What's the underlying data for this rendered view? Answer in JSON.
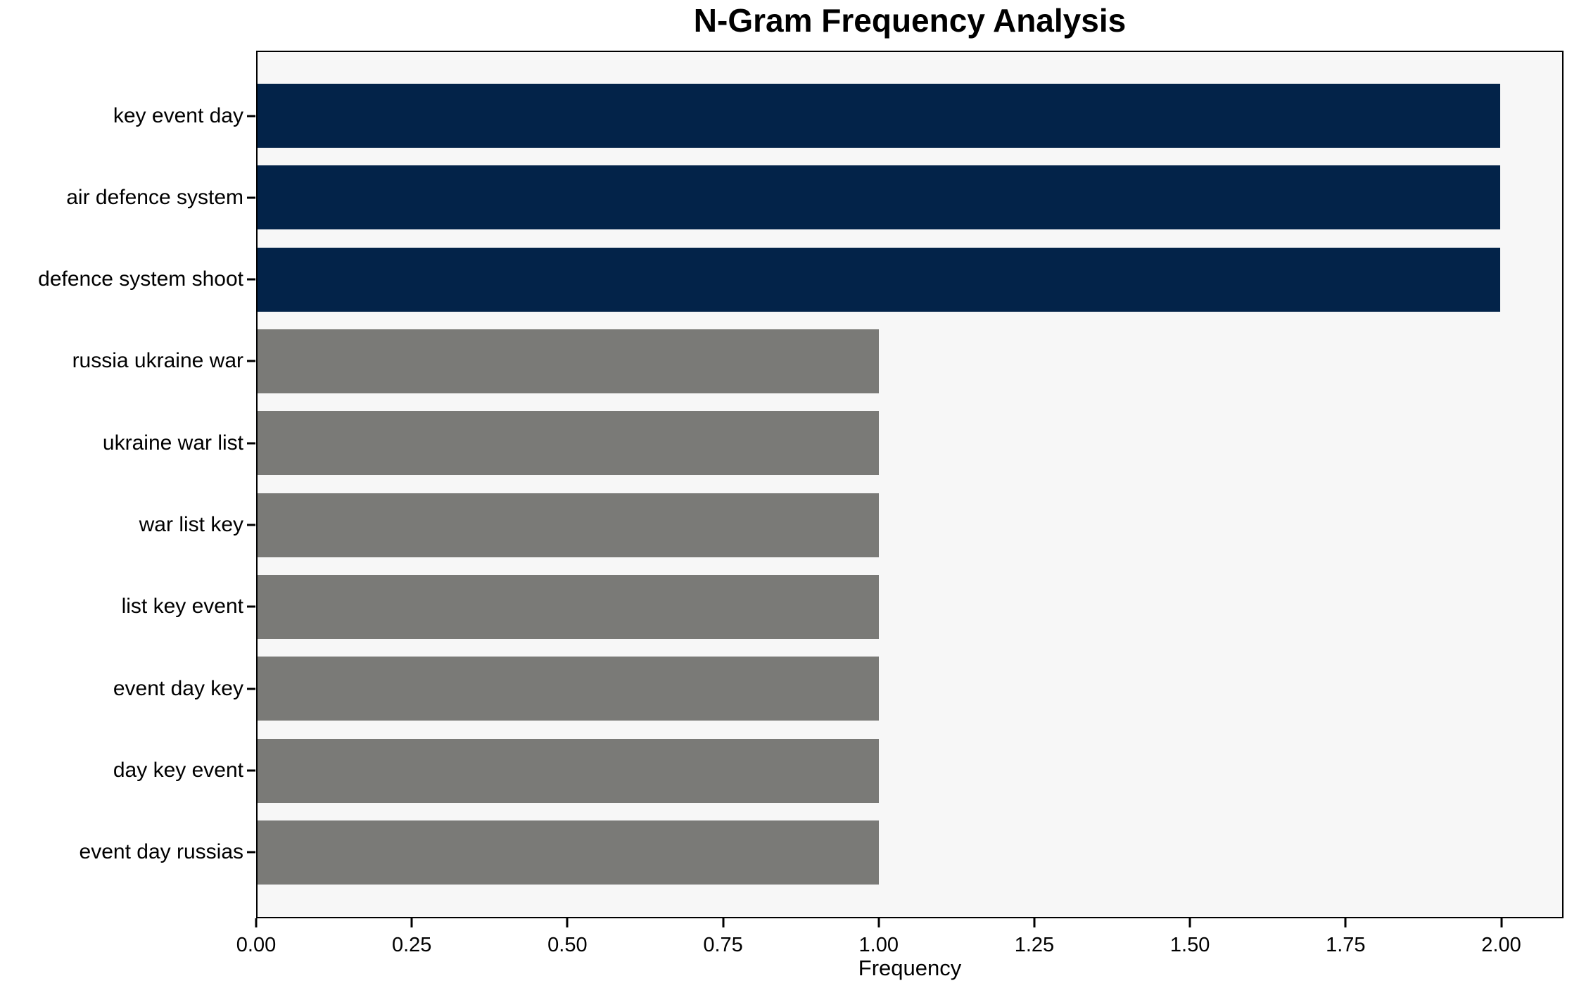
{
  "title": "N-Gram Frequency Analysis",
  "colors": {
    "figure_bg": "#ffffff",
    "plot_bg": "#f7f7f7",
    "axis": "#000000",
    "highlight_bar": "#032349",
    "regular_bar": "#7a7a77"
  },
  "chart_data": {
    "type": "bar",
    "orientation": "horizontal",
    "title": "N-Gram Frequency Analysis",
    "xlabel": "Frequency",
    "ylabel": "",
    "grid": false,
    "legend": null,
    "xlim": [
      0,
      2.1
    ],
    "x_ticks": [
      0,
      0.25,
      0.5,
      0.75,
      1,
      1.25,
      1.5,
      1.75,
      2
    ],
    "x_tick_labels": [
      "0.00",
      "0.25",
      "0.50",
      "0.75",
      "1.00",
      "1.25",
      "1.50",
      "1.75",
      "2.00"
    ],
    "categories": [
      "key event day",
      "air defence system",
      "defence system shoot",
      "russia ukraine war",
      "ukraine war list",
      "war list key",
      "list key event",
      "event day key",
      "day key event",
      "event day russias"
    ],
    "values": [
      2,
      2,
      2,
      1,
      1,
      1,
      1,
      1,
      1,
      1
    ],
    "bar_colors": [
      "#032349",
      "#032349",
      "#032349",
      "#7a7a77",
      "#7a7a77",
      "#7a7a77",
      "#7a7a77",
      "#7a7a77",
      "#7a7a77",
      "#7a7a77"
    ]
  }
}
